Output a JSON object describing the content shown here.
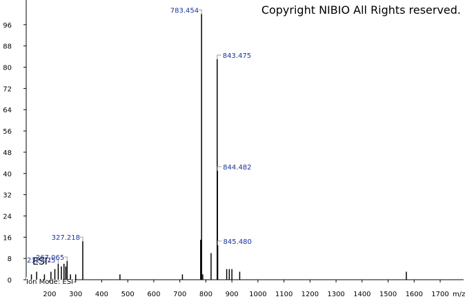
{
  "chart_data": {
    "type": "stem",
    "annotations": [
      "Copyright NIBIO All Rights reserved.",
      "ESI-",
      "Ion Mode: ESI-"
    ],
    "x_label": "m/z",
    "x": [
      130,
      150,
      180,
      205,
      220,
      232.975,
      245,
      255,
      262,
      267.065,
      280,
      300,
      327.218,
      470,
      710,
      780,
      783.454,
      788,
      820,
      843.475,
      844.482,
      845.48,
      880,
      890,
      900,
      930,
      1570
    ],
    "values": [
      2,
      3,
      2,
      3,
      4,
      6,
      5,
      6,
      5,
      7,
      2,
      2,
      14.5,
      2,
      2,
      15,
      100,
      2,
      10,
      83,
      41,
      13,
      4,
      4,
      4,
      3,
      3
    ],
    "x_labels": [
      null,
      null,
      null,
      null,
      null,
      "232.975",
      null,
      null,
      null,
      "267.065",
      null,
      null,
      "327.218",
      null,
      null,
      null,
      "783.454",
      null,
      null,
      "843.475",
      "844.482",
      "845.480",
      null,
      null,
      null,
      null,
      null
    ],
    "color": "#000000",
    "label_color": "#1a3399",
    "xlim": [
      110,
      1790
    ],
    "xticks": [
      200,
      300,
      400,
      500,
      600,
      700,
      800,
      900,
      1000,
      1100,
      1200,
      1300,
      1400,
      1500,
      1600,
      1700
    ],
    "ylim": [
      0,
      104
    ],
    "yticks": [
      0,
      8,
      16,
      24,
      32,
      40,
      48,
      56,
      64,
      72,
      80,
      88,
      96
    ]
  }
}
